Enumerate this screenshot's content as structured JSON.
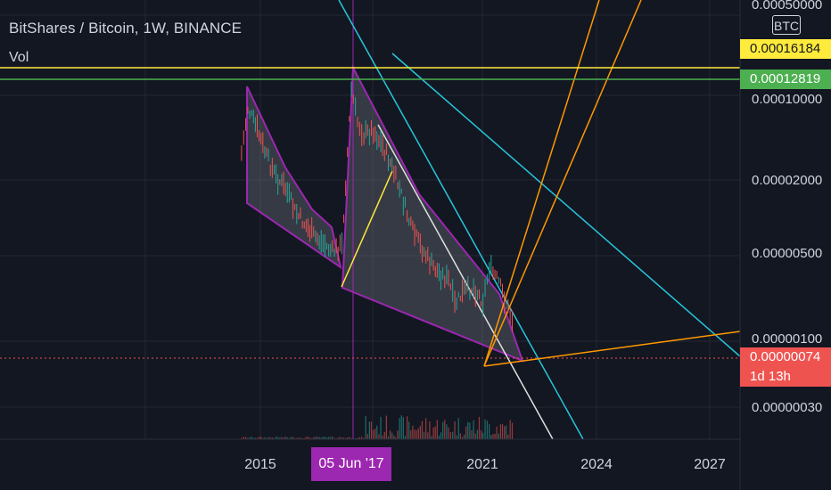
{
  "header": {
    "title": "BitShares / Bitcoin, 1W, BINANCE",
    "volume_label": "Vol"
  },
  "price_scale": {
    "currency_button": "BTC",
    "ticks": [
      "0.00050000",
      "0.00010000",
      "0.00002000",
      "0.00000500",
      "0.00000100",
      "0.00000030"
    ],
    "badges": {
      "yellow_level": "0.00016184",
      "green_level": "0.00012819",
      "last_price": "0.00000074",
      "countdown": "1d 13h"
    }
  },
  "time_scale": {
    "ticks": [
      "2015",
      "2021",
      "2024",
      "2027"
    ],
    "crosshair_date": "05 Jun '17"
  },
  "colors": {
    "background": "#131722",
    "grid": "#242733",
    "yellow_line": "#ffeb3b",
    "green_line": "#4caf50",
    "last_price": "#ef5350",
    "crosshair": "#9c27b0",
    "wedge_fill": "#787b86",
    "wedge_edge": "#9c27b0",
    "teal_line": "#26c6da",
    "orange_line": "#ff9800",
    "white_line": "#e0e0e0",
    "candle_up": "#26a69a",
    "candle_down": "#ef5350"
  },
  "chart_data": {
    "type": "line",
    "scale": "log",
    "ylim": [
      2e-07,
      0.0007
    ],
    "xlim": [
      "2013-08",
      "2028-06"
    ],
    "series": [
      {
        "values_x": [
          "2014-07",
          "2014-09",
          "2014-12",
          "2015-03",
          "2015-06",
          "2015-09",
          "2015-12",
          "2016-03",
          "2016-06",
          "2016-09",
          "2016-12",
          "2017-03",
          "2017-06",
          "2017-08",
          "2017-10",
          "2018-01",
          "2018-04",
          "2018-07",
          "2018-10",
          "2019-01",
          "2019-04",
          "2019-07",
          "2019-10",
          "2020-01",
          "2020-03",
          "2020-06",
          "2020-09",
          "2020-12",
          "2021-02",
          "2021-05",
          "2021-08",
          "2021-10"
        ],
        "values_y": [
          3e-05,
          8e-05,
          5e-05,
          2.8e-05,
          1.8e-05,
          1.4e-05,
          8.5e-06,
          6.5e-06,
          5e-06,
          4.2e-06,
          3.5e-06,
          4e-06,
          0.00012,
          6e-05,
          4.5e-05,
          5e-05,
          3.5e-05,
          2.2e-05,
          1.2e-05,
          6e-06,
          4e-06,
          2.8e-06,
          2.2e-06,
          1.9e-06,
          1.1e-06,
          1.5e-06,
          1.6e-06,
          1.2e-06,
          2.5e-06,
          1.8e-06,
          1e-06,
          7.4e-07
        ]
      }
    ],
    "levels": [
      0.00016184,
      0.00012819,
      7.4e-07
    ]
  }
}
